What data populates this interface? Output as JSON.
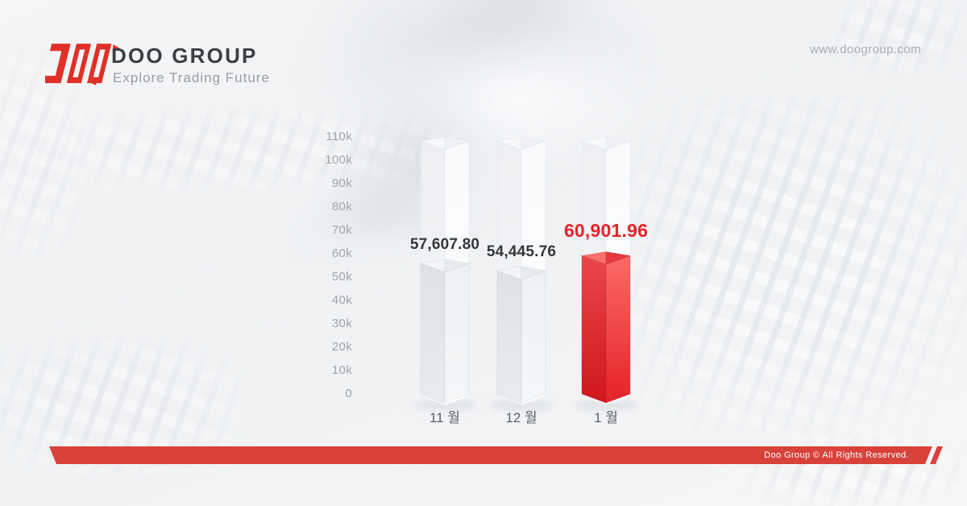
{
  "brand": {
    "name": "DOO GROUP",
    "tagline": "Explore Trading Future",
    "website": "www.doogroup.com"
  },
  "chart_data": {
    "type": "bar",
    "title": "",
    "categories": [
      "11 월",
      "12 월",
      "1 월"
    ],
    "values": [
      57607.8,
      54445.76,
      60901.96
    ],
    "value_labels": [
      "57,607.80",
      "54,445.76",
      "60,901.96"
    ],
    "highlight_index": 2,
    "y_ticks": [
      "110k",
      "100k",
      "90k",
      "80k",
      "70k",
      "60k",
      "50k",
      "40k",
      "30k",
      "20k",
      "10k",
      "0"
    ],
    "ylim": [
      0,
      110000
    ],
    "xlabel": "",
    "ylabel": "",
    "grid": false,
    "legend": null
  },
  "footer": {
    "copyright": "Doo Group © All Rights Reserved."
  },
  "colors": {
    "accent_red": "#e4232a",
    "logo_red": "#e03028",
    "footer_red": "#d8423a",
    "label_dark": "#33373c",
    "axis_gray": "#a0a5ab"
  }
}
